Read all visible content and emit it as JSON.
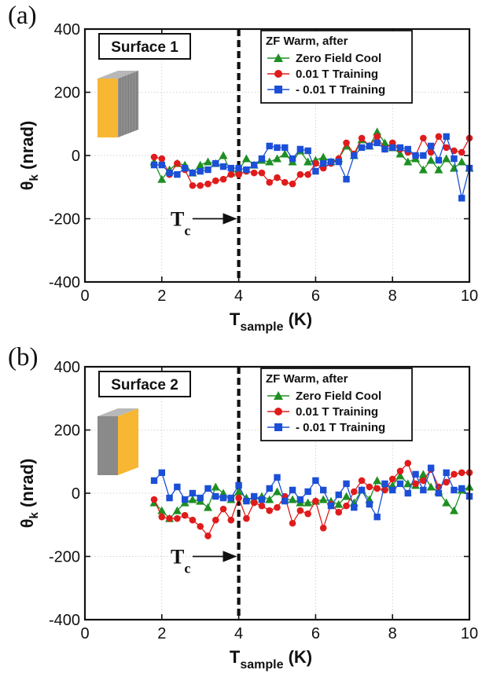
{
  "chart_data": [
    {
      "type": "line",
      "panel_label": "(a)",
      "surface_label": "Surface 1",
      "xlabel": "T",
      "xlabel_sub": "sample",
      "xlabel_unit": " (K)",
      "ylabel": "θ",
      "ylabel_sub": "k",
      "ylabel_unit": " (nrad)",
      "xlim": [
        0,
        10
      ],
      "ylim": [
        -400,
        400
      ],
      "xticks": [
        "0",
        "2",
        "4",
        "6",
        "8",
        "10"
      ],
      "yticks": [
        "-400",
        "-200",
        "0",
        "200",
        "400"
      ],
      "grid": true,
      "legend_position": "top-right",
      "legend_title": "ZF Warm, after",
      "tc_label": "T",
      "tc_sub": "c",
      "tc_value": 4,
      "annotation_arrow_y": -200,
      "series": [
        {
          "name": "Zero Field Cool",
          "color": "#1e8f22",
          "marker": "triangle",
          "x": [
            1.8,
            2.0,
            2.2,
            2.4,
            2.6,
            2.8,
            3.0,
            3.2,
            3.4,
            3.6,
            3.8,
            4.0,
            4.2,
            4.4,
            4.6,
            4.8,
            5.0,
            5.2,
            5.4,
            5.6,
            5.8,
            6.0,
            6.2,
            6.4,
            6.6,
            6.8,
            7.0,
            7.2,
            7.4,
            7.6,
            7.8,
            8.0,
            8.2,
            8.4,
            8.6,
            8.8,
            9.0,
            9.2,
            9.4,
            9.6,
            9.8,
            10.0
          ],
          "values": [
            -20,
            -75,
            -45,
            -25,
            -30,
            -55,
            -30,
            -20,
            -25,
            0,
            -55,
            -45,
            -10,
            -30,
            -15,
            -20,
            -10,
            5,
            -20,
            15,
            -20,
            -15,
            -5,
            -20,
            -10,
            30,
            0,
            50,
            30,
            75,
            40,
            25,
            5,
            -20,
            -10,
            -45,
            -15,
            -45,
            -10,
            -40,
            -20,
            -40
          ]
        },
        {
          "name": "0.01 T Training",
          "color": "#e01b1b",
          "marker": "circle",
          "x": [
            1.8,
            2.0,
            2.2,
            2.4,
            2.6,
            2.8,
            3.0,
            3.2,
            3.4,
            3.6,
            3.8,
            4.0,
            4.2,
            4.4,
            4.6,
            4.8,
            5.0,
            5.2,
            5.4,
            5.6,
            5.8,
            6.0,
            6.2,
            6.4,
            6.6,
            6.8,
            7.0,
            7.2,
            7.4,
            7.6,
            7.8,
            8.0,
            8.2,
            8.4,
            8.6,
            8.8,
            9.0,
            9.2,
            9.4,
            9.6,
            9.8,
            10.0
          ],
          "values": [
            -5,
            -10,
            -60,
            -25,
            -45,
            -95,
            -95,
            -90,
            -80,
            -75,
            -60,
            -60,
            -50,
            -55,
            -55,
            -85,
            -70,
            -85,
            -90,
            -60,
            -60,
            -25,
            -40,
            -25,
            -10,
            40,
            5,
            55,
            30,
            60,
            20,
            40,
            20,
            10,
            0,
            55,
            10,
            60,
            25,
            15,
            10,
            55
          ]
        },
        {
          "name": "- 0.01 T Training",
          "color": "#1b4fd8",
          "marker": "square",
          "x": [
            1.8,
            2.0,
            2.2,
            2.4,
            2.6,
            2.8,
            3.0,
            3.2,
            3.4,
            3.6,
            3.8,
            4.0,
            4.2,
            4.4,
            4.6,
            4.8,
            5.0,
            5.2,
            5.4,
            5.6,
            5.8,
            6.0,
            6.2,
            6.4,
            6.6,
            6.8,
            7.0,
            7.2,
            7.4,
            7.6,
            7.8,
            8.0,
            8.2,
            8.4,
            8.6,
            8.8,
            9.0,
            9.2,
            9.4,
            9.6,
            9.8,
            10.0
          ],
          "values": [
            -30,
            -30,
            -55,
            -60,
            -40,
            -55,
            -50,
            -45,
            -25,
            -35,
            -40,
            -40,
            -45,
            -30,
            -10,
            30,
            25,
            25,
            -10,
            20,
            15,
            -50,
            -25,
            -20,
            -20,
            -75,
            0,
            25,
            30,
            40,
            20,
            25,
            25,
            20,
            0,
            0,
            30,
            -15,
            60,
            -10,
            -135,
            -40
          ]
        }
      ]
    },
    {
      "type": "line",
      "panel_label": "(b)",
      "surface_label": "Surface 2",
      "xlabel": "T",
      "xlabel_sub": "sample",
      "xlabel_unit": " (K)",
      "ylabel": "θ",
      "ylabel_sub": "k",
      "ylabel_unit": " (nrad)",
      "xlim": [
        0,
        10
      ],
      "ylim": [
        -400,
        400
      ],
      "xticks": [
        "0",
        "2",
        "4",
        "6",
        "8",
        "10"
      ],
      "yticks": [
        "-400",
        "-200",
        "0",
        "200",
        "400"
      ],
      "grid": true,
      "legend_position": "top-right",
      "legend_title": "ZF Warm, after",
      "tc_label": "T",
      "tc_sub": "c",
      "tc_value": 4,
      "annotation_arrow_y": -200,
      "series": [
        {
          "name": "Zero Field Cool",
          "color": "#1e8f22",
          "marker": "triangle",
          "x": [
            1.8,
            2.0,
            2.2,
            2.4,
            2.6,
            2.8,
            3.0,
            3.2,
            3.4,
            3.6,
            3.8,
            4.0,
            4.2,
            4.4,
            4.6,
            4.8,
            5.0,
            5.2,
            5.4,
            5.6,
            5.8,
            6.0,
            6.2,
            6.4,
            6.6,
            6.8,
            7.0,
            7.2,
            7.4,
            7.6,
            7.8,
            8.0,
            8.2,
            8.4,
            8.6,
            8.8,
            9.0,
            9.2,
            9.4,
            9.6,
            9.8,
            10.0
          ],
          "values": [
            -30,
            -55,
            -80,
            -55,
            -30,
            -20,
            -25,
            -45,
            20,
            0,
            -20,
            5,
            -15,
            -20,
            -10,
            -20,
            5,
            -20,
            -20,
            -30,
            -30,
            -25,
            -20,
            -25,
            -35,
            -10,
            -30,
            10,
            -20,
            40,
            20,
            25,
            55,
            30,
            25,
            60,
            20,
            5,
            -30,
            -55,
            10,
            20
          ]
        },
        {
          "name": "0.01 T Training",
          "color": "#e01b1b",
          "marker": "circle",
          "x": [
            1.8,
            2.0,
            2.2,
            2.4,
            2.6,
            2.8,
            3.0,
            3.2,
            3.4,
            3.6,
            3.8,
            4.0,
            4.2,
            4.4,
            4.6,
            4.8,
            5.0,
            5.2,
            5.4,
            5.6,
            5.8,
            6.0,
            6.2,
            6.4,
            6.6,
            6.8,
            7.0,
            7.2,
            7.4,
            7.6,
            7.8,
            8.0,
            8.2,
            8.4,
            8.6,
            8.8,
            9.0,
            9.2,
            9.4,
            9.6,
            9.8,
            10.0
          ],
          "values": [
            -20,
            -75,
            -80,
            -80,
            -70,
            -85,
            -105,
            -135,
            -85,
            -50,
            -85,
            -15,
            -80,
            -30,
            -40,
            -55,
            -45,
            -10,
            -95,
            -55,
            -65,
            -25,
            -110,
            -35,
            -60,
            -40,
            5,
            40,
            20,
            15,
            10,
            45,
            70,
            95,
            30,
            40,
            75,
            20,
            35,
            60,
            65,
            65
          ]
        },
        {
          "name": "- 0.01 T Training",
          "color": "#1b4fd8",
          "marker": "square",
          "x": [
            1.8,
            2.0,
            2.2,
            2.4,
            2.6,
            2.8,
            3.0,
            3.2,
            3.4,
            3.6,
            3.8,
            4.0,
            4.2,
            4.4,
            4.6,
            4.8,
            5.0,
            5.2,
            5.4,
            5.6,
            5.8,
            6.0,
            6.2,
            6.4,
            6.6,
            6.8,
            7.0,
            7.2,
            7.4,
            7.6,
            7.8,
            8.0,
            8.2,
            8.4,
            8.6,
            8.8,
            9.0,
            9.2,
            9.4,
            9.6,
            9.8,
            10.0
          ],
          "values": [
            40,
            65,
            -15,
            20,
            -20,
            0,
            -15,
            15,
            -10,
            -15,
            -15,
            25,
            -25,
            -10,
            -20,
            15,
            50,
            -25,
            10,
            -20,
            5,
            40,
            10,
            -40,
            -5,
            30,
            -45,
            10,
            -35,
            -75,
            30,
            10,
            30,
            0,
            60,
            10,
            80,
            0,
            65,
            10,
            15,
            -10
          ]
        }
      ]
    }
  ]
}
